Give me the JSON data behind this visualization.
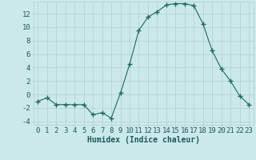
{
  "x": [
    0,
    1,
    2,
    3,
    4,
    5,
    6,
    7,
    8,
    9,
    10,
    11,
    12,
    13,
    14,
    15,
    16,
    17,
    18,
    19,
    20,
    21,
    22,
    23
  ],
  "y": [
    -1.0,
    -0.5,
    -1.5,
    -1.5,
    -1.5,
    -1.5,
    -3.0,
    -2.7,
    -3.5,
    0.2,
    4.5,
    9.5,
    11.5,
    12.3,
    13.3,
    13.5,
    13.5,
    13.2,
    10.5,
    6.5,
    3.8,
    2.0,
    -0.2,
    -1.5
  ],
  "line_color": "#1a6b5a",
  "marker_color": "#1a6b5a",
  "bg_color": "#cce9ea",
  "grid_major_color": "#b0cfcf",
  "grid_minor_color": "#c2dede",
  "xlabel": "Humidex (Indice chaleur)",
  "xlim": [
    -0.5,
    23.5
  ],
  "ylim": [
    -4.5,
    13.8
  ],
  "yticks": [
    -4,
    -2,
    0,
    2,
    4,
    6,
    8,
    10,
    12
  ],
  "xticks": [
    0,
    1,
    2,
    3,
    4,
    5,
    6,
    7,
    8,
    9,
    10,
    11,
    12,
    13,
    14,
    15,
    16,
    17,
    18,
    19,
    20,
    21,
    22,
    23
  ],
  "xtick_labels": [
    "0",
    "1",
    "2",
    "3",
    "4",
    "5",
    "6",
    "7",
    "8",
    "9",
    "10",
    "11",
    "12",
    "13",
    "14",
    "15",
    "16",
    "17",
    "18",
    "19",
    "20",
    "21",
    "22",
    "23"
  ],
  "font_color": "#1a5a5a",
  "xlabel_fontsize": 7,
  "tick_fontsize": 6.5
}
